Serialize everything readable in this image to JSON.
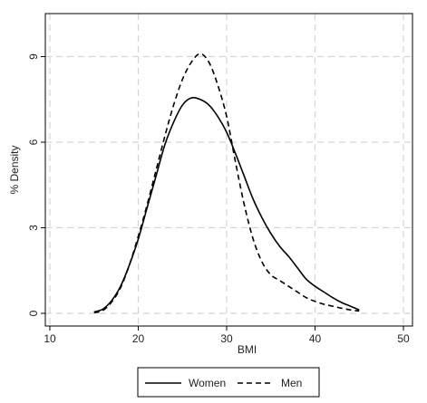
{
  "chart_data": {
    "type": "line",
    "title": "",
    "xlabel": "BMI",
    "ylabel": "% Density",
    "xlim": [
      10,
      50
    ],
    "ylim": [
      0,
      10
    ],
    "xticks": [
      10,
      20,
      30,
      40,
      50
    ],
    "yticks": [
      0,
      3,
      6,
      9
    ],
    "grid": true,
    "legend_position": "bottom",
    "series": [
      {
        "name": "Women",
        "line_style": "solid",
        "color": "#000000",
        "x": [
          15,
          16,
          17,
          18,
          19,
          20,
          21,
          22,
          23,
          24,
          25,
          26,
          27,
          28,
          29,
          30,
          31,
          32,
          33,
          34,
          35,
          36,
          37,
          38,
          39,
          40,
          41,
          42,
          43,
          44,
          45
        ],
        "y": [
          0.05,
          0.15,
          0.45,
          0.95,
          1.7,
          2.6,
          3.7,
          4.8,
          5.9,
          6.7,
          7.3,
          7.55,
          7.5,
          7.3,
          6.9,
          6.35,
          5.6,
          4.8,
          4.0,
          3.35,
          2.8,
          2.35,
          2.0,
          1.6,
          1.2,
          0.95,
          0.75,
          0.55,
          0.38,
          0.25,
          0.12
        ]
      },
      {
        "name": "Men",
        "line_style": "dashed",
        "color": "#000000",
        "x": [
          15,
          16,
          17,
          18,
          19,
          20,
          21,
          22,
          23,
          24,
          25,
          26,
          27,
          28,
          29,
          30,
          31,
          32,
          33,
          34,
          35,
          36,
          37,
          38,
          39,
          40,
          41,
          42,
          43,
          44,
          45
        ],
        "y": [
          0.02,
          0.1,
          0.4,
          0.9,
          1.7,
          2.7,
          3.8,
          5.0,
          6.2,
          7.3,
          8.2,
          8.8,
          9.1,
          8.8,
          8.0,
          6.9,
          5.3,
          3.8,
          2.6,
          1.8,
          1.35,
          1.15,
          0.95,
          0.75,
          0.55,
          0.42,
          0.32,
          0.25,
          0.18,
          0.12,
          0.08
        ]
      }
    ]
  }
}
